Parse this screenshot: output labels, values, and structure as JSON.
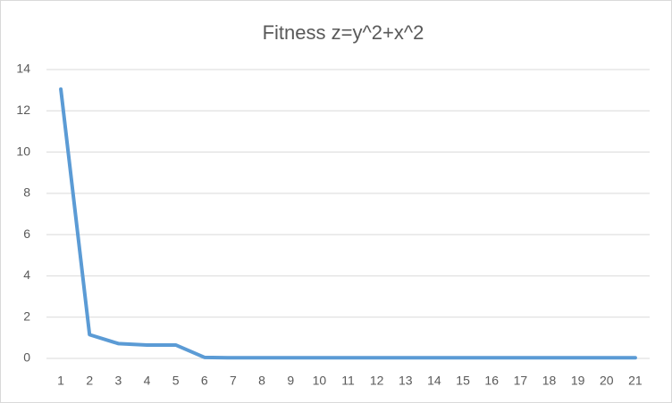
{
  "chart_data": {
    "type": "line",
    "title": "Fitness z=y^2+x^2",
    "categories": [
      "1",
      "2",
      "3",
      "4",
      "5",
      "6",
      "7",
      "8",
      "9",
      "10",
      "11",
      "12",
      "13",
      "14",
      "15",
      "16",
      "17",
      "18",
      "19",
      "20",
      "21"
    ],
    "series": [
      {
        "color": "#5b9bd5",
        "values": [
          13.05,
          1.15,
          0.72,
          0.65,
          0.65,
          0.05,
          0.03,
          0.03,
          0.03,
          0.03,
          0.03,
          0.03,
          0.03,
          0.03,
          0.03,
          0.03,
          0.03,
          0.03,
          0.03,
          0.03,
          0.03
        ]
      }
    ],
    "ylim": [
      0,
      14
    ],
    "yticks": [
      0,
      2,
      4,
      6,
      8,
      10,
      12,
      14
    ],
    "grid": true
  }
}
